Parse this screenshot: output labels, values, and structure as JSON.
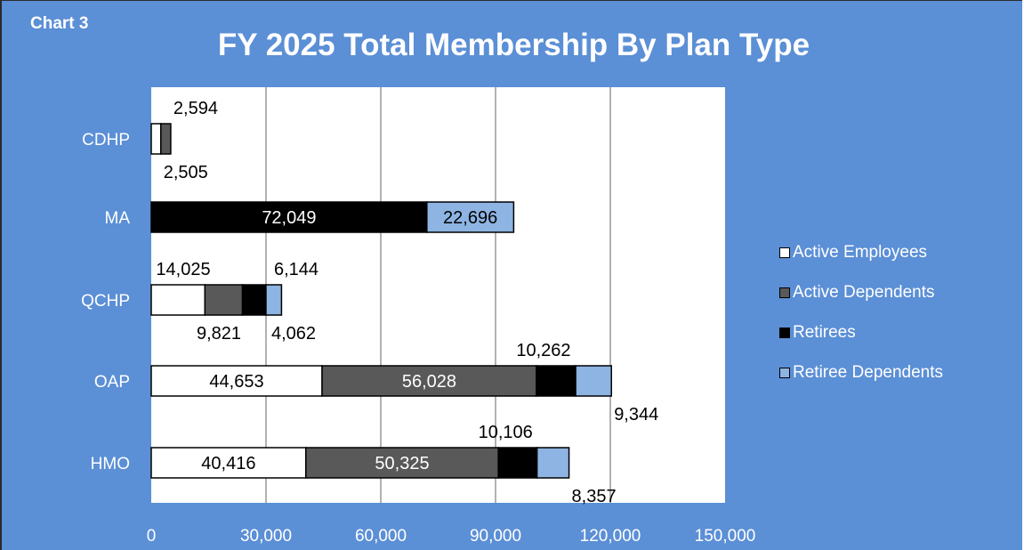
{
  "header": {
    "chart_label": "Chart 3",
    "title": "FY 2025 Total Membership By Plan Type"
  },
  "colors": {
    "background": "#5b8fd6",
    "plot_background": "#ffffff",
    "gridline": "#999999",
    "active_employees": "#ffffff",
    "active_dependents": "#595959",
    "retirees": "#000000",
    "retiree_dependents": "#8db4e2"
  },
  "chart_data": {
    "type": "bar",
    "orientation": "horizontal",
    "stacked": true,
    "title": "FY 2025 Total Membership By Plan Type",
    "categories": [
      "CDHP",
      "MA",
      "QCHP",
      "OAP",
      "HMO"
    ],
    "series": [
      {
        "name": "Active Employees",
        "values": [
          2505,
          0,
          14025,
          44653,
          40416
        ]
      },
      {
        "name": "Active Dependents",
        "values": [
          2594,
          0,
          9821,
          56028,
          50325
        ]
      },
      {
        "name": "Retirees",
        "values": [
          0,
          72049,
          6144,
          10262,
          10106
        ]
      },
      {
        "name": "Retiree Dependents",
        "values": [
          0,
          22696,
          4062,
          9344,
          8357
        ]
      }
    ],
    "data_labels": [
      {
        "text": "2,594",
        "category": "CDHP",
        "series": "Active Dependents",
        "placement": "above"
      },
      {
        "text": "2,505",
        "category": "CDHP",
        "series": "Active Employees",
        "placement": "below"
      },
      {
        "text": "72,049",
        "category": "MA",
        "series": "Retirees",
        "placement": "inside"
      },
      {
        "text": "22,696",
        "category": "MA",
        "series": "Retiree Dependents",
        "placement": "inside"
      },
      {
        "text": "14,025",
        "category": "QCHP",
        "series": "Active Employees",
        "placement": "above"
      },
      {
        "text": "6,144",
        "category": "QCHP",
        "series": "Retirees",
        "placement": "above"
      },
      {
        "text": "9,821",
        "category": "QCHP",
        "series": "Active Dependents",
        "placement": "below"
      },
      {
        "text": "4,062",
        "category": "QCHP",
        "series": "Retiree Dependents",
        "placement": "below"
      },
      {
        "text": "44,653",
        "category": "OAP",
        "series": "Active Employees",
        "placement": "inside"
      },
      {
        "text": "56,028",
        "category": "OAP",
        "series": "Active Dependents",
        "placement": "inside"
      },
      {
        "text": "10,262",
        "category": "OAP",
        "series": "Retirees",
        "placement": "above"
      },
      {
        "text": "9,344",
        "category": "OAP",
        "series": "Retiree Dependents",
        "placement": "below"
      },
      {
        "text": "40,416",
        "category": "HMO",
        "series": "Active Employees",
        "placement": "inside"
      },
      {
        "text": "50,325",
        "category": "HMO",
        "series": "Active Dependents",
        "placement": "inside"
      },
      {
        "text": "10,106",
        "category": "HMO",
        "series": "Retirees",
        "placement": "above"
      },
      {
        "text": "8,357",
        "category": "HMO",
        "series": "Retiree Dependents",
        "placement": "below"
      }
    ],
    "xlim": [
      0,
      150000
    ],
    "xticks": [
      0,
      30000,
      60000,
      90000,
      120000,
      150000
    ],
    "xtick_labels": [
      "0",
      "30,000",
      "60,000",
      "90,000",
      "120,000",
      "150,000"
    ],
    "xlabel": "",
    "ylabel": "",
    "grid": "vertical",
    "legend_position": "right"
  }
}
